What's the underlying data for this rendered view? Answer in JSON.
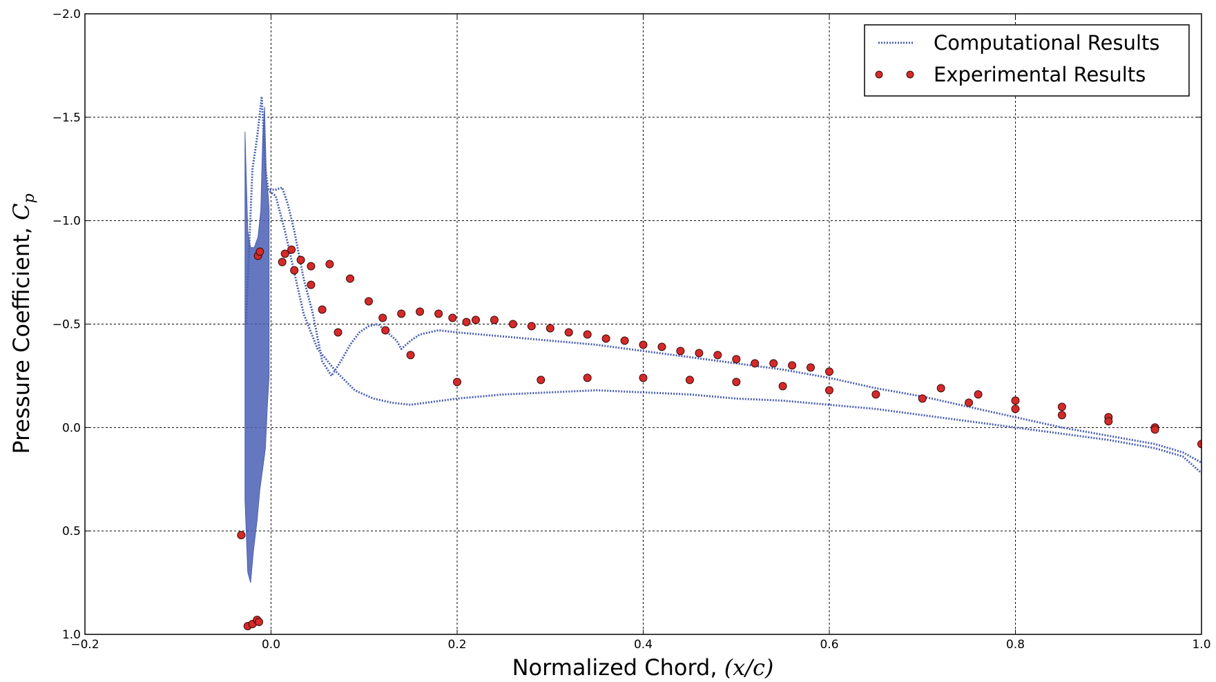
{
  "chart_data": {
    "type": "scatter",
    "xlabel": "Normalized Chord, ",
    "xlabel_math": "(x/c)",
    "ylabel": "Pressure Coefficient, ",
    "ylabel_math": "C",
    "ylabel_math_sub": "p",
    "xlim": [
      -0.2,
      1.0
    ],
    "ylim": [
      -2.0,
      1.0
    ],
    "y_inverted": true,
    "grid": true,
    "legend_position": "top-right",
    "x_ticks": [
      -0.2,
      0.0,
      0.2,
      0.4,
      0.6,
      0.8,
      1.0
    ],
    "x_tick_labels": [
      "−0.2",
      "0.0",
      "0.2",
      "0.4",
      "0.6",
      "0.8",
      "1.0"
    ],
    "y_ticks": [
      -2.0,
      -1.5,
      -1.0,
      -0.5,
      0.0,
      0.5,
      1.0
    ],
    "y_tick_labels": [
      "−2.0",
      "−1.5",
      "−1.0",
      "−0.5",
      "0.0",
      "0.5",
      "1.0"
    ],
    "series": [
      {
        "name": "Computational Results",
        "style": "dotted-line",
        "color": "#4a5fb3",
        "lines": [
          [
            [
              -0.027,
              -0.5
            ],
            [
              -0.02,
              -1.25
            ],
            [
              -0.015,
              -1.4
            ],
            [
              -0.01,
              -1.6
            ],
            [
              -0.006,
              -1.25
            ],
            [
              -0.003,
              -1.15
            ],
            [
              0.005,
              -1.15
            ],
            [
              0.012,
              -1.16
            ],
            [
              0.018,
              -1.08
            ],
            [
              0.025,
              -0.95
            ],
            [
              0.035,
              -0.72
            ],
            [
              0.045,
              -0.55
            ],
            [
              0.055,
              -0.32
            ],
            [
              0.065,
              -0.25
            ],
            [
              0.075,
              -0.32
            ],
            [
              0.085,
              -0.4
            ],
            [
              0.095,
              -0.46
            ],
            [
              0.105,
              -0.49
            ],
            [
              0.115,
              -0.5
            ],
            [
              0.125,
              -0.46
            ],
            [
              0.135,
              -0.42
            ],
            [
              0.14,
              -0.38
            ],
            [
              0.15,
              -0.42
            ],
            [
              0.16,
              -0.45
            ],
            [
              0.18,
              -0.47
            ],
            [
              0.2,
              -0.46
            ],
            [
              0.25,
              -0.44
            ],
            [
              0.3,
              -0.42
            ],
            [
              0.35,
              -0.4
            ],
            [
              0.4,
              -0.37
            ],
            [
              0.45,
              -0.34
            ],
            [
              0.5,
              -0.31
            ],
            [
              0.55,
              -0.28
            ],
            [
              0.6,
              -0.24
            ],
            [
              0.65,
              -0.19
            ],
            [
              0.7,
              -0.15
            ],
            [
              0.75,
              -0.1
            ],
            [
              0.8,
              -0.05
            ],
            [
              0.85,
              0.0
            ],
            [
              0.9,
              0.04
            ],
            [
              0.95,
              0.08
            ],
            [
              0.98,
              0.12
            ],
            [
              1.0,
              0.17
            ]
          ],
          [
            [
              -0.004,
              -1.15
            ],
            [
              0.005,
              -1.12
            ],
            [
              0.015,
              -0.95
            ],
            [
              0.025,
              -0.75
            ],
            [
              0.035,
              -0.55
            ],
            [
              0.05,
              -0.38
            ],
            [
              0.07,
              -0.27
            ],
            [
              0.09,
              -0.18
            ],
            [
              0.11,
              -0.14
            ],
            [
              0.13,
              -0.12
            ],
            [
              0.15,
              -0.11
            ],
            [
              0.2,
              -0.14
            ],
            [
              0.25,
              -0.16
            ],
            [
              0.3,
              -0.17
            ],
            [
              0.35,
              -0.18
            ],
            [
              0.4,
              -0.17
            ],
            [
              0.45,
              -0.16
            ],
            [
              0.5,
              -0.14
            ],
            [
              0.55,
              -0.13
            ],
            [
              0.6,
              -0.11
            ],
            [
              0.65,
              -0.09
            ],
            [
              0.7,
              -0.06
            ],
            [
              0.75,
              -0.03
            ],
            [
              0.8,
              0.0
            ],
            [
              0.85,
              0.03
            ],
            [
              0.9,
              0.06
            ],
            [
              0.95,
              0.1
            ],
            [
              0.98,
              0.14
            ],
            [
              1.0,
              0.22
            ]
          ]
        ],
        "oscillation_band": {
          "x_range": [
            -0.028,
            -0.002
          ],
          "top": [
            [
              -0.028,
              -1.43
            ],
            [
              -0.025,
              -0.95
            ],
            [
              -0.022,
              -0.87
            ],
            [
              -0.018,
              -0.87
            ],
            [
              -0.014,
              -0.92
            ],
            [
              -0.011,
              -1.05
            ],
            [
              -0.009,
              -1.4
            ],
            [
              -0.007,
              -1.55
            ],
            [
              -0.005,
              -1.2
            ],
            [
              -0.003,
              -1.12
            ],
            [
              -0.002,
              -1.05
            ]
          ],
          "bottom": [
            [
              -0.028,
              0.35
            ],
            [
              -0.025,
              0.7
            ],
            [
              -0.022,
              0.75
            ],
            [
              -0.019,
              0.6
            ],
            [
              -0.015,
              0.45
            ],
            [
              -0.012,
              0.3
            ],
            [
              -0.009,
              0.2
            ],
            [
              -0.006,
              0.1
            ],
            [
              -0.004,
              -0.1
            ],
            [
              -0.002,
              -0.25
            ]
          ]
        }
      },
      {
        "name": "Experimental Results",
        "style": "markers",
        "color": "#d42a2a",
        "points": [
          [
            -0.032,
            0.52
          ],
          [
            -0.025,
            0.96
          ],
          [
            -0.02,
            0.95
          ],
          [
            -0.015,
            0.93
          ],
          [
            -0.013,
            0.94
          ],
          [
            -0.014,
            -0.83
          ],
          [
            -0.012,
            -0.85
          ],
          [
            0.012,
            -0.8
          ],
          [
            0.015,
            -0.84
          ],
          [
            0.022,
            -0.86
          ],
          [
            0.025,
            -0.76
          ],
          [
            0.032,
            -0.81
          ],
          [
            0.043,
            -0.78
          ],
          [
            0.043,
            -0.69
          ],
          [
            0.055,
            -0.57
          ],
          [
            0.063,
            -0.79
          ],
          [
            0.072,
            -0.46
          ],
          [
            0.085,
            -0.72
          ],
          [
            0.105,
            -0.61
          ],
          [
            0.12,
            -0.53
          ],
          [
            0.123,
            -0.47
          ],
          [
            0.14,
            -0.55
          ],
          [
            0.15,
            -0.35
          ],
          [
            0.16,
            -0.56
          ],
          [
            0.18,
            -0.55
          ],
          [
            0.195,
            -0.53
          ],
          [
            0.2,
            -0.22
          ],
          [
            0.21,
            -0.51
          ],
          [
            0.22,
            -0.52
          ],
          [
            0.24,
            -0.52
          ],
          [
            0.26,
            -0.5
          ],
          [
            0.28,
            -0.49
          ],
          [
            0.29,
            -0.23
          ],
          [
            0.3,
            -0.48
          ],
          [
            0.32,
            -0.46
          ],
          [
            0.34,
            -0.45
          ],
          [
            0.34,
            -0.24
          ],
          [
            0.36,
            -0.43
          ],
          [
            0.38,
            -0.42
          ],
          [
            0.4,
            -0.4
          ],
          [
            0.4,
            -0.24
          ],
          [
            0.42,
            -0.39
          ],
          [
            0.44,
            -0.37
          ],
          [
            0.45,
            -0.23
          ],
          [
            0.46,
            -0.36
          ],
          [
            0.48,
            -0.35
          ],
          [
            0.5,
            -0.33
          ],
          [
            0.5,
            -0.22
          ],
          [
            0.52,
            -0.31
          ],
          [
            0.54,
            -0.31
          ],
          [
            0.55,
            -0.2
          ],
          [
            0.56,
            -0.3
          ],
          [
            0.58,
            -0.29
          ],
          [
            0.6,
            -0.27
          ],
          [
            0.6,
            -0.18
          ],
          [
            0.65,
            -0.16
          ],
          [
            0.7,
            -0.14
          ],
          [
            0.72,
            -0.19
          ],
          [
            0.75,
            -0.12
          ],
          [
            0.76,
            -0.16
          ],
          [
            0.8,
            -0.13
          ],
          [
            0.8,
            -0.09
          ],
          [
            0.85,
            -0.1
          ],
          [
            0.85,
            -0.06
          ],
          [
            0.9,
            -0.05
          ],
          [
            0.9,
            -0.03
          ],
          [
            0.95,
            0.0
          ],
          [
            0.95,
            0.01
          ],
          [
            1.0,
            0.08
          ]
        ]
      }
    ]
  }
}
